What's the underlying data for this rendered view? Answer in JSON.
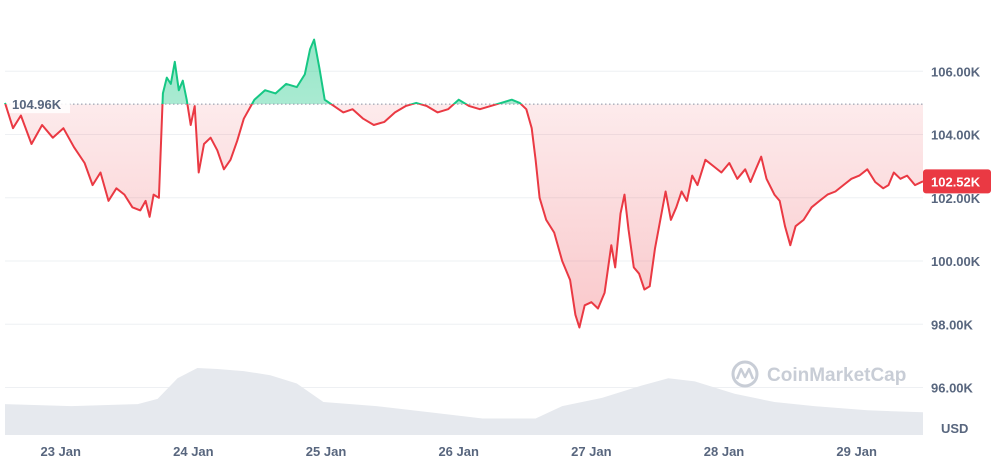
{
  "chart_data": {
    "type": "area",
    "currency": "USD",
    "reference_value": 104960,
    "reference_label": "104.96K",
    "current_value": 102520,
    "current_label": "102.52K",
    "ylim": [
      94500,
      108000
    ],
    "y_ticks": [
      {
        "value": 96000,
        "label": "96.00K"
      },
      {
        "value": 98000,
        "label": "98.00K"
      },
      {
        "value": 100000,
        "label": "100.00K"
      },
      {
        "value": 102000,
        "label": "102.00K"
      },
      {
        "value": 104000,
        "label": "104.00K"
      },
      {
        "value": 106000,
        "label": "106.00K"
      }
    ],
    "x_ticks": [
      {
        "value": 0.42,
        "label": "23 Jan"
      },
      {
        "value": 1.42,
        "label": "24 Jan"
      },
      {
        "value": 2.42,
        "label": "25 Jan"
      },
      {
        "value": 3.42,
        "label": "26 Jan"
      },
      {
        "value": 4.42,
        "label": "27 Jan"
      },
      {
        "value": 5.42,
        "label": "28 Jan"
      },
      {
        "value": 6.42,
        "label": "29 Jan"
      }
    ],
    "xlim": [
      0,
      6.92
    ],
    "colors": {
      "above": "#16c784",
      "below": "#ea3943",
      "volume": "#e6e9ee",
      "grid": "#eef0f3",
      "reference": "#8a94a6"
    },
    "series": [
      {
        "values": [
          [
            0.0,
            105000
          ],
          [
            0.06,
            104200
          ],
          [
            0.12,
            104600
          ],
          [
            0.2,
            103700
          ],
          [
            0.28,
            104300
          ],
          [
            0.36,
            103900
          ],
          [
            0.44,
            104200
          ],
          [
            0.52,
            103600
          ],
          [
            0.6,
            103100
          ],
          [
            0.66,
            102400
          ],
          [
            0.72,
            102800
          ],
          [
            0.78,
            101900
          ],
          [
            0.84,
            102300
          ],
          [
            0.9,
            102100
          ],
          [
            0.96,
            101700
          ],
          [
            1.02,
            101600
          ],
          [
            1.06,
            101900
          ],
          [
            1.09,
            101400
          ],
          [
            1.12,
            102100
          ],
          [
            1.16,
            102000
          ],
          [
            1.19,
            105300
          ],
          [
            1.22,
            105800
          ],
          [
            1.25,
            105600
          ],
          [
            1.28,
            106300
          ],
          [
            1.31,
            105400
          ],
          [
            1.34,
            105700
          ],
          [
            1.37,
            105100
          ],
          [
            1.4,
            104300
          ],
          [
            1.43,
            104900
          ],
          [
            1.46,
            102800
          ],
          [
            1.5,
            103700
          ],
          [
            1.55,
            103900
          ],
          [
            1.6,
            103500
          ],
          [
            1.65,
            102900
          ],
          [
            1.7,
            103200
          ],
          [
            1.75,
            103800
          ],
          [
            1.8,
            104500
          ],
          [
            1.88,
            105100
          ],
          [
            1.96,
            105400
          ],
          [
            2.04,
            105300
          ],
          [
            2.12,
            105600
          ],
          [
            2.2,
            105500
          ],
          [
            2.26,
            105900
          ],
          [
            2.3,
            106700
          ],
          [
            2.33,
            107000
          ],
          [
            2.37,
            106100
          ],
          [
            2.41,
            105100
          ],
          [
            2.48,
            104900
          ],
          [
            2.55,
            104700
          ],
          [
            2.62,
            104800
          ],
          [
            2.7,
            104500
          ],
          [
            2.78,
            104300
          ],
          [
            2.86,
            104400
          ],
          [
            2.94,
            104700
          ],
          [
            3.02,
            104900
          ],
          [
            3.1,
            105000
          ],
          [
            3.18,
            104900
          ],
          [
            3.26,
            104700
          ],
          [
            3.34,
            104800
          ],
          [
            3.42,
            105100
          ],
          [
            3.5,
            104900
          ],
          [
            3.58,
            104800
          ],
          [
            3.66,
            104900
          ],
          [
            3.74,
            105000
          ],
          [
            3.82,
            105100
          ],
          [
            3.88,
            105000
          ],
          [
            3.93,
            104800
          ],
          [
            3.97,
            104200
          ],
          [
            4.0,
            103200
          ],
          [
            4.03,
            102000
          ],
          [
            4.08,
            101300
          ],
          [
            4.14,
            100900
          ],
          [
            4.2,
            100000
          ],
          [
            4.26,
            99400
          ],
          [
            4.3,
            98300
          ],
          [
            4.33,
            97900
          ],
          [
            4.37,
            98600
          ],
          [
            4.42,
            98700
          ],
          [
            4.47,
            98500
          ],
          [
            4.52,
            99000
          ],
          [
            4.57,
            100500
          ],
          [
            4.6,
            99800
          ],
          [
            4.64,
            101500
          ],
          [
            4.67,
            102100
          ],
          [
            4.7,
            101000
          ],
          [
            4.74,
            99800
          ],
          [
            4.78,
            99600
          ],
          [
            4.82,
            99100
          ],
          [
            4.86,
            99200
          ],
          [
            4.9,
            100400
          ],
          [
            4.94,
            101300
          ],
          [
            4.98,
            102200
          ],
          [
            5.02,
            101300
          ],
          [
            5.06,
            101700
          ],
          [
            5.1,
            102200
          ],
          [
            5.14,
            101900
          ],
          [
            5.18,
            102700
          ],
          [
            5.22,
            102400
          ],
          [
            5.28,
            103200
          ],
          [
            5.34,
            103000
          ],
          [
            5.4,
            102800
          ],
          [
            5.46,
            103100
          ],
          [
            5.52,
            102600
          ],
          [
            5.58,
            102900
          ],
          [
            5.62,
            102500
          ],
          [
            5.66,
            102900
          ],
          [
            5.7,
            103300
          ],
          [
            5.74,
            102600
          ],
          [
            5.8,
            102100
          ],
          [
            5.84,
            101900
          ],
          [
            5.88,
            101100
          ],
          [
            5.92,
            100500
          ],
          [
            5.96,
            101100
          ],
          [
            6.02,
            101300
          ],
          [
            6.08,
            101700
          ],
          [
            6.14,
            101900
          ],
          [
            6.2,
            102100
          ],
          [
            6.26,
            102200
          ],
          [
            6.32,
            102400
          ],
          [
            6.38,
            102600
          ],
          [
            6.44,
            102700
          ],
          [
            6.5,
            102900
          ],
          [
            6.56,
            102500
          ],
          [
            6.62,
            102300
          ],
          [
            6.66,
            102400
          ],
          [
            6.7,
            102800
          ],
          [
            6.75,
            102600
          ],
          [
            6.8,
            102700
          ],
          [
            6.86,
            102400
          ],
          [
            6.92,
            102520
          ]
        ]
      }
    ],
    "volume": [
      [
        0.0,
        0.3
      ],
      [
        0.5,
        0.28
      ],
      [
        1.0,
        0.3
      ],
      [
        1.15,
        0.35
      ],
      [
        1.3,
        0.55
      ],
      [
        1.45,
        0.65
      ],
      [
        1.6,
        0.64
      ],
      [
        1.8,
        0.62
      ],
      [
        2.0,
        0.58
      ],
      [
        2.2,
        0.5
      ],
      [
        2.4,
        0.32
      ],
      [
        2.8,
        0.28
      ],
      [
        3.2,
        0.22
      ],
      [
        3.6,
        0.16
      ],
      [
        4.0,
        0.16
      ],
      [
        4.2,
        0.28
      ],
      [
        4.5,
        0.36
      ],
      [
        4.8,
        0.48
      ],
      [
        5.0,
        0.55
      ],
      [
        5.2,
        0.52
      ],
      [
        5.5,
        0.4
      ],
      [
        5.8,
        0.32
      ],
      [
        6.1,
        0.28
      ],
      [
        6.5,
        0.24
      ],
      [
        6.92,
        0.22
      ]
    ]
  },
  "watermark": {
    "text": "CoinMarketCap",
    "icon": "coinmarketcap-logo-icon"
  }
}
